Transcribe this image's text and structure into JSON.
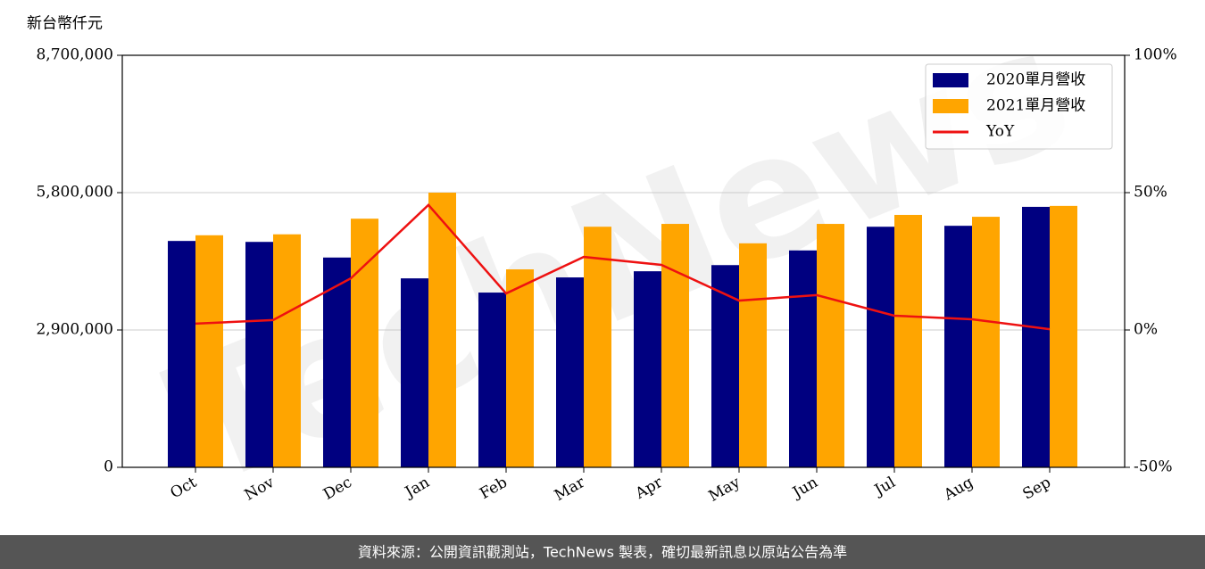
{
  "chart_data": {
    "type": "bar",
    "y_label": "新台幣仟元",
    "categories": [
      "Oct",
      "Nov",
      "Dec",
      "Jan",
      "Feb",
      "Mar",
      "Apr",
      "May",
      "Jun",
      "Jul",
      "Aug",
      "Sep"
    ],
    "series": [
      {
        "name": "2020單月營收",
        "type": "bar",
        "color": "#000080",
        "values": [
          4780000,
          4760000,
          4430000,
          3990000,
          3690000,
          4010000,
          4140000,
          4270000,
          4580000,
          5080000,
          5100000,
          5500000
        ]
      },
      {
        "name": "2021單月營收",
        "type": "bar",
        "color": "#ffa500",
        "values": [
          4900000,
          4920000,
          5250000,
          5800000,
          4180000,
          5080000,
          5140000,
          4730000,
          5140000,
          5330000,
          5290000,
          5520000
        ]
      },
      {
        "name": "YoY",
        "type": "line",
        "axis": "y2",
        "color": "#ee1111",
        "values": [
          2.3,
          3.6,
          18.8,
          45.5,
          13.3,
          26.6,
          23.7,
          10.7,
          12.7,
          5.2,
          3.9,
          0.3
        ]
      }
    ],
    "ylim": [
      0,
      8700000
    ],
    "yticks": [
      0,
      {
        "value": 2900000,
        "label": "2,900,000"
      },
      {
        "value": 5800000,
        "label": "5,800,000"
      },
      {
        "value": 8700000,
        "label": "8,700,000"
      }
    ],
    "y2lim": [
      -50,
      100
    ],
    "y2ticks": [
      {
        "value": -50,
        "label": "-50%"
      },
      {
        "value": 0,
        "label": "0%"
      },
      {
        "value": 50,
        "label": "50%"
      },
      {
        "value": 100,
        "label": "100%"
      }
    ],
    "grid": true,
    "legend": "upper right",
    "watermark": "TechNews",
    "footer": "資料來源：公開資訊觀測站，TechNews 製表，確切最新訊息以原站公告為準"
  }
}
